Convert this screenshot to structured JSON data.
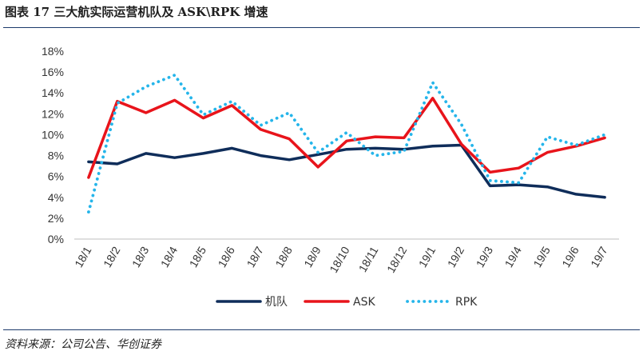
{
  "title": "图表 17 三大航实际运营机队及 ASK\\RPK 增速",
  "source": "资料来源：公司公告、华创证券",
  "colors": {
    "fleet": "#0f2d5a",
    "ask": "#e8141b",
    "rpk": "#25b5ea",
    "rule": "#1c3a6b"
  },
  "chart_data": {
    "type": "line",
    "categories": [
      "18/1",
      "18/2",
      "18/3",
      "18/4",
      "18/5",
      "18/6",
      "18/7",
      "18/8",
      "18/9",
      "18/10",
      "18/11",
      "18/12",
      "19/1",
      "19/2",
      "19/3",
      "19/4",
      "19/5",
      "19/6",
      "19/7"
    ],
    "ylim": [
      0,
      18
    ],
    "yticks": [
      0,
      2,
      4,
      6,
      8,
      10,
      12,
      14,
      16,
      18
    ],
    "ytick_labels": [
      "0%",
      "2%",
      "4%",
      "6%",
      "8%",
      "10%",
      "12%",
      "14%",
      "16%",
      "18%"
    ],
    "grid": false,
    "legend": "bottom",
    "series": [
      {
        "name": "机队",
        "style": "solid-thick",
        "values": [
          7.4,
          7.2,
          8.2,
          7.8,
          8.2,
          8.7,
          8.0,
          7.6,
          8.1,
          8.6,
          8.7,
          8.6,
          8.9,
          9.0,
          5.1,
          5.2,
          5.0,
          4.3,
          4.0
        ]
      },
      {
        "name": "ASK",
        "style": "solid",
        "values": [
          5.9,
          13.2,
          12.1,
          13.3,
          11.6,
          12.8,
          10.5,
          9.6,
          6.9,
          9.4,
          9.8,
          9.7,
          13.5,
          9.1,
          6.4,
          6.8,
          8.3,
          8.9,
          9.7
        ]
      },
      {
        "name": "RPK",
        "style": "dotted",
        "values": [
          2.6,
          13.0,
          14.6,
          15.7,
          11.9,
          13.2,
          10.9,
          12.1,
          8.3,
          10.2,
          8.0,
          8.4,
          15.0,
          11.0,
          5.6,
          5.4,
          9.8,
          9.0,
          10.0
        ]
      }
    ]
  }
}
